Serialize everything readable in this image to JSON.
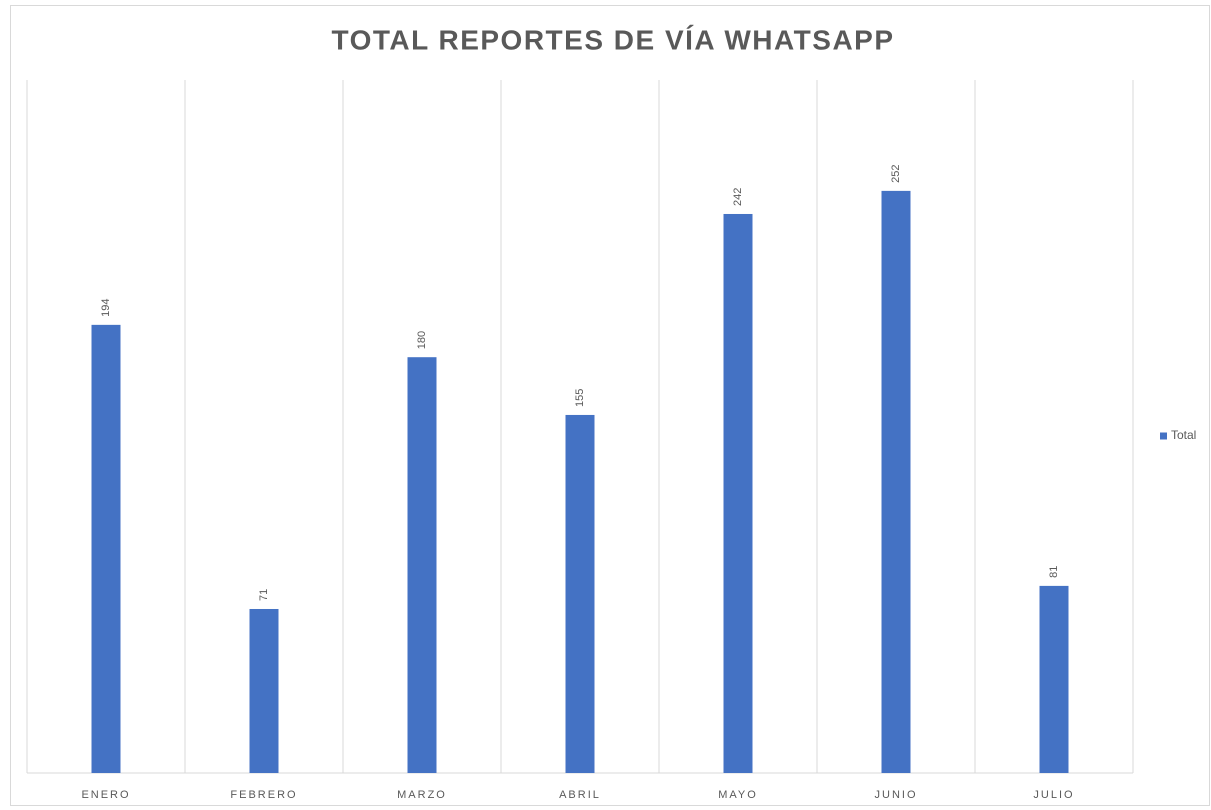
{
  "chart_data": {
    "type": "bar",
    "title": "TOTAL REPORTES DE VÍA WHATSAPP",
    "categories": [
      "ENERO",
      "FEBRERO",
      "MARZO",
      "ABRIL",
      "MAYO",
      "JUNIO",
      "JULIO"
    ],
    "series": [
      {
        "name": "Total",
        "color": "#4472c4",
        "values": [
          194,
          71,
          180,
          155,
          242,
          252,
          81
        ]
      }
    ],
    "ylim": [
      0,
      300
    ],
    "legend": "right"
  }
}
